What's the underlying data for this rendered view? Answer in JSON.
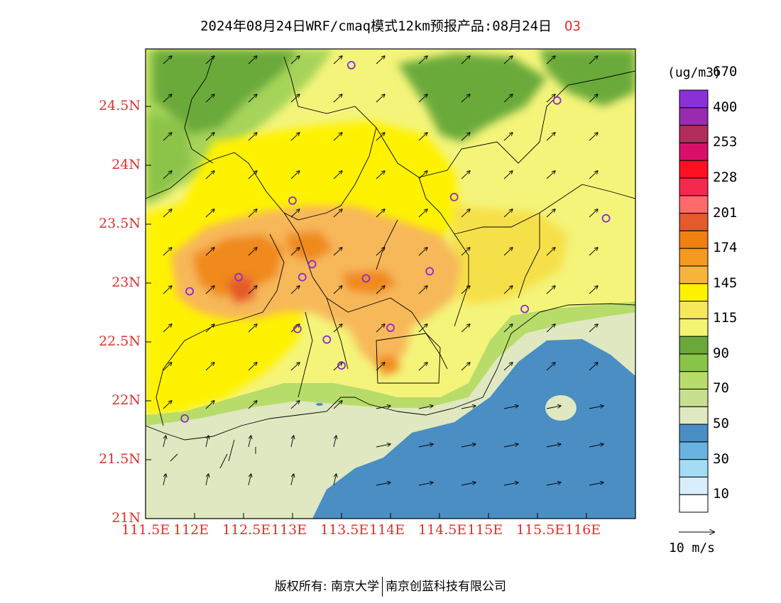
{
  "title": {
    "main": "2024年08月24日WRF/cmaq模式12km预报产品:08月24日",
    "species": "O3"
  },
  "map": {
    "lon_ticks": [
      "111.5E",
      "112E",
      "112.5E",
      "113E",
      "113.5E",
      "114E",
      "114.5E",
      "115E",
      "115.5E",
      "116E"
    ],
    "lat_ticks": [
      "21N",
      "21.5N",
      "22N",
      "22.5N",
      "23N",
      "23.5N",
      "24N",
      "24.5N"
    ],
    "colors": {
      "sea_blue": "#4a90c8",
      "light_band": "#e0eac0",
      "green_mid": "#a6d45a",
      "green_dark": "#6aaa3a",
      "yellow_light": "#f4f47a",
      "yellow": "#fff200",
      "yellow_mid": "#f6e04a",
      "orange_light": "#f7b85a",
      "orange": "#f08a1e",
      "orange_red": "#e45a2a",
      "marker": "#8a2ad8"
    },
    "station_markers": [
      {
        "lon": 113.6,
        "lat": 24.85
      },
      {
        "lon": 115.7,
        "lat": 24.55
      },
      {
        "lon": 113.0,
        "lat": 23.7
      },
      {
        "lon": 114.65,
        "lat": 23.73
      },
      {
        "lon": 116.2,
        "lat": 23.55
      },
      {
        "lon": 112.45,
        "lat": 23.05
      },
      {
        "lon": 113.1,
        "lat": 23.05
      },
      {
        "lon": 113.2,
        "lat": 23.16
      },
      {
        "lon": 113.75,
        "lat": 23.04
      },
      {
        "lon": 114.4,
        "lat": 23.1
      },
      {
        "lon": 111.95,
        "lat": 22.93
      },
      {
        "lon": 115.37,
        "lat": 22.78
      },
      {
        "lon": 113.05,
        "lat": 22.61
      },
      {
        "lon": 113.35,
        "lat": 22.52
      },
      {
        "lon": 114.0,
        "lat": 22.62
      },
      {
        "lon": 113.5,
        "lat": 22.3
      },
      {
        "lon": 111.9,
        "lat": 21.85
      }
    ]
  },
  "colorbar": {
    "unit": "(ug/m3)",
    "colors": [
      "#ffffff",
      "#d8eefa",
      "#a4dcf6",
      "#6ab2e0",
      "#4a8ec4",
      "#dfe8c0",
      "#c6e090",
      "#b8dc6a",
      "#88c448",
      "#6aa83a",
      "#f2f474",
      "#f6e85a",
      "#fff200",
      "#f7b43c",
      "#f49a20",
      "#f08010",
      "#e45a2a",
      "#ff6a6a",
      "#f52850",
      "#ff1020",
      "#d8106a",
      "#b02d5c",
      "#9a2ab0",
      "#8a30d8"
    ],
    "labels": [
      "10",
      "30",
      "50",
      "70",
      "90",
      "115",
      "145",
      "174",
      "201",
      "228",
      "253",
      "400",
      "670"
    ]
  },
  "reference_vector": {
    "label": "10 m/s"
  },
  "footer": {
    "left": "版权所有: 南京大学",
    "right": "南京创蓝科技有限公司"
  }
}
